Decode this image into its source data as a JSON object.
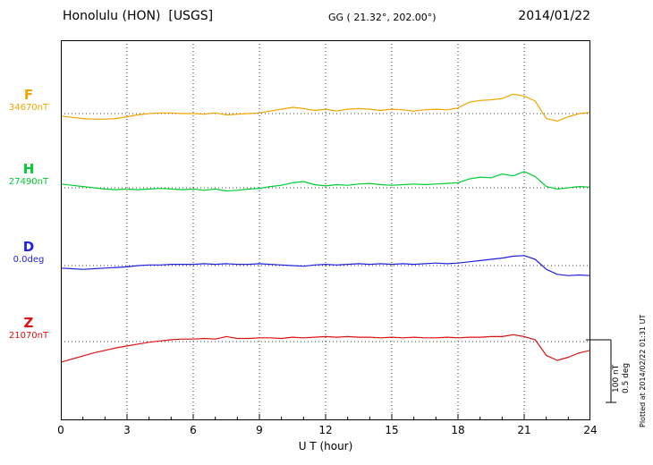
{
  "header": {
    "station": "Honolulu (HON)  [USGS]",
    "coords": "GG ( 21.32°, 202.00°)",
    "date": "2014/01/22"
  },
  "axis": {
    "xlabel": "U T (hour)"
  },
  "annotations": {
    "plotted_at": "Plotted at 2014/02/22 01:31 UT",
    "scale_nt": "100 nT",
    "scale_deg": "0.5 deg"
  },
  "chart_data": {
    "type": "line",
    "title": "Honolulu (HON) [USGS] magnetogram, 2014/01/22",
    "xlabel": "U T (hour)",
    "x_range": [
      0,
      24
    ],
    "x_ticks": [
      0,
      3,
      6,
      9,
      12,
      15,
      18,
      21,
      24
    ],
    "grid": "dotted vertical at 3-hour ticks; dotted horizontal at each channel baseline",
    "scale_reference": {
      "field_channels": "100 nT",
      "declination_channel": "0.5 deg"
    },
    "x": [
      0,
      0.5,
      1,
      1.5,
      2,
      2.5,
      3,
      3.5,
      4,
      4.5,
      5,
      5.5,
      6,
      6.5,
      7,
      7.5,
      8,
      8.5,
      9,
      9.5,
      10,
      10.5,
      11,
      11.5,
      12,
      12.5,
      13,
      13.5,
      14,
      14.5,
      15,
      15.5,
      16,
      16.5,
      17,
      17.5,
      18,
      18.5,
      19,
      19.5,
      20,
      20.5,
      21,
      21.5,
      22,
      22.5,
      23,
      23.5,
      24
    ],
    "values_are": "deviation from channel baseline",
    "series": [
      {
        "id": "F",
        "name": "F",
        "unit": "nT",
        "baseline": 34670,
        "baseline_label": "34670nT",
        "color": "#f0a500",
        "values": [
          -4,
          -6,
          -8,
          -9,
          -9,
          -8,
          -5,
          -2,
          0,
          1,
          1,
          0,
          0,
          -1,
          1,
          -2,
          -1,
          0,
          1,
          4,
          7,
          10,
          8,
          5,
          7,
          4,
          7,
          8,
          7,
          5,
          7,
          6,
          4,
          6,
          7,
          6,
          9,
          18,
          21,
          22,
          24,
          31,
          28,
          20,
          -8,
          -12,
          -5,
          0,
          2
        ]
      },
      {
        "id": "H",
        "name": "H",
        "unit": "nT",
        "baseline": 27490,
        "baseline_label": "27490nT",
        "color": "#00cc33",
        "values": [
          6,
          4,
          2,
          0,
          -2,
          -3,
          -2,
          -3,
          -2,
          -1,
          -2,
          -3,
          -2,
          -4,
          -2,
          -5,
          -4,
          -2,
          -1,
          2,
          4,
          8,
          10,
          5,
          3,
          5,
          4,
          6,
          7,
          5,
          4,
          5,
          6,
          5,
          6,
          7,
          8,
          14,
          17,
          16,
          22,
          19,
          26,
          18,
          2,
          -2,
          0,
          2,
          1
        ]
      },
      {
        "id": "D",
        "name": "D",
        "unit": "deg",
        "baseline": 0.0,
        "baseline_label": "0.0deg",
        "color": "#2222dd",
        "values": [
          -0.02,
          -0.025,
          -0.03,
          -0.025,
          -0.02,
          -0.015,
          -0.01,
          0,
          0.005,
          0.005,
          0.01,
          0.01,
          0.01,
          0.015,
          0.01,
          0.015,
          0.01,
          0.01,
          0.015,
          0.01,
          0.005,
          0,
          -0.005,
          0.005,
          0.01,
          0.005,
          0.01,
          0.015,
          0.01,
          0.015,
          0.01,
          0.015,
          0.01,
          0.015,
          0.02,
          0.015,
          0.02,
          0.03,
          0.04,
          0.05,
          0.06,
          0.075,
          0.08,
          0.05,
          -0.03,
          -0.07,
          -0.08,
          -0.075,
          -0.08
        ]
      },
      {
        "id": "Z",
        "name": "Z",
        "unit": "nT",
        "baseline": 21070,
        "baseline_label": "21070nT",
        "color": "#dd1111",
        "values": [
          -33,
          -28,
          -23,
          -18,
          -14,
          -10,
          -7,
          -4,
          -1,
          1,
          3,
          4,
          4,
          5,
          4,
          8,
          5,
          5,
          6,
          6,
          5,
          7,
          6,
          7,
          8,
          7,
          8,
          7,
          7,
          6,
          7,
          6,
          7,
          6,
          6,
          7,
          6,
          7,
          7,
          8,
          8,
          11,
          8,
          3,
          -22,
          -30,
          -25,
          -18,
          -14
        ]
      }
    ]
  }
}
